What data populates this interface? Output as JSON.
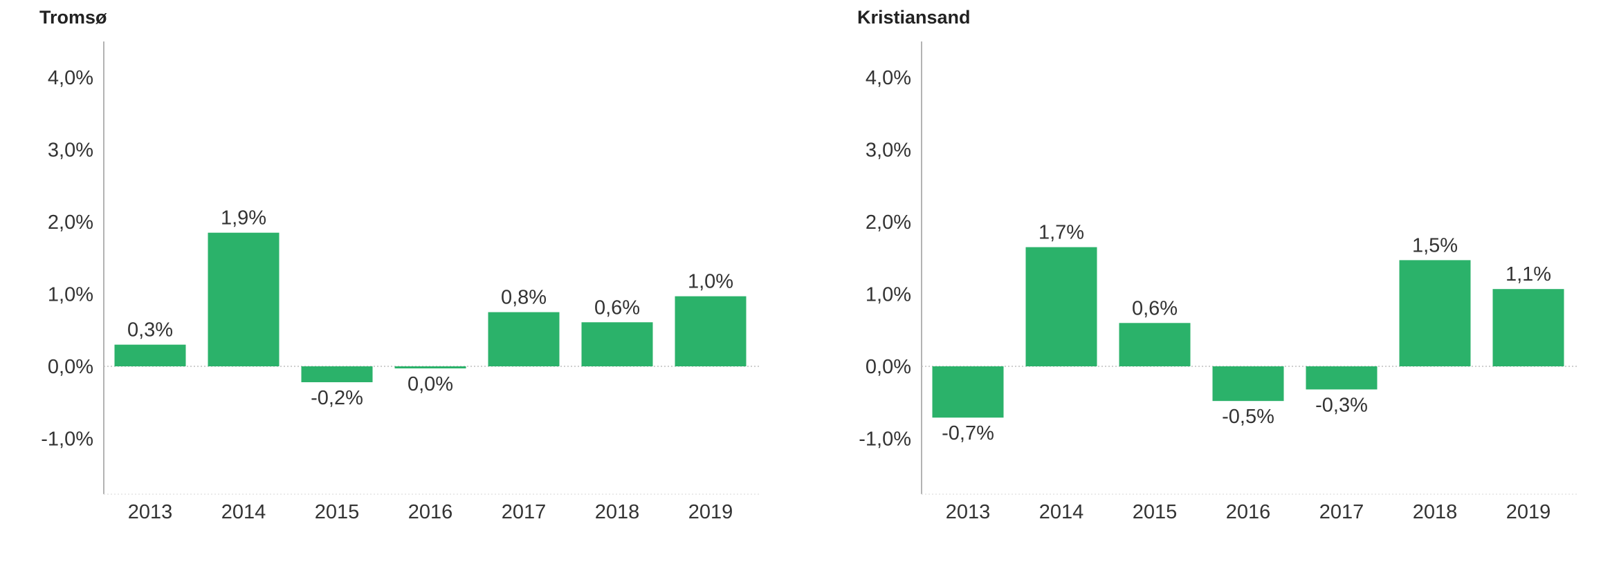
{
  "chart_data": [
    {
      "type": "bar",
      "title": "Tromsø",
      "categories": [
        "2013",
        "2014",
        "2015",
        "2016",
        "2017",
        "2018",
        "2019"
      ],
      "values": [
        0.3,
        1.85,
        -0.22,
        -0.02,
        0.75,
        0.61,
        0.97
      ],
      "data_labels": [
        "0,3%",
        "1,9%",
        "-0,2%",
        "0,0%",
        "0,8%",
        "0,6%",
        "1,0%"
      ],
      "yticks": [
        -1,
        0,
        1,
        2,
        3,
        4
      ],
      "ytick_labels": [
        "-1,0%",
        "0,0%",
        "1,0%",
        "2,0%",
        "3,0%",
        "4,0%"
      ],
      "ylim": [
        -1.75,
        4.45
      ],
      "grid": false,
      "bar_color": "#2bb26a"
    },
    {
      "type": "bar",
      "title": "Kristiansand",
      "categories": [
        "2013",
        "2014",
        "2015",
        "2016",
        "2017",
        "2018",
        "2019"
      ],
      "values": [
        -0.71,
        1.65,
        0.6,
        -0.48,
        -0.32,
        1.47,
        1.07
      ],
      "data_labels": [
        "-0,7%",
        "1,7%",
        "0,6%",
        "-0,5%",
        "-0,3%",
        "1,5%",
        "1,1%"
      ],
      "yticks": [
        -1,
        0,
        1,
        2,
        3,
        4
      ],
      "ytick_labels": [
        "-1,0%",
        "0,0%",
        "1,0%",
        "2,0%",
        "3,0%",
        "4,0%"
      ],
      "ylim": [
        -1.75,
        4.45
      ],
      "grid": false,
      "bar_color": "#2bb26a"
    }
  ]
}
